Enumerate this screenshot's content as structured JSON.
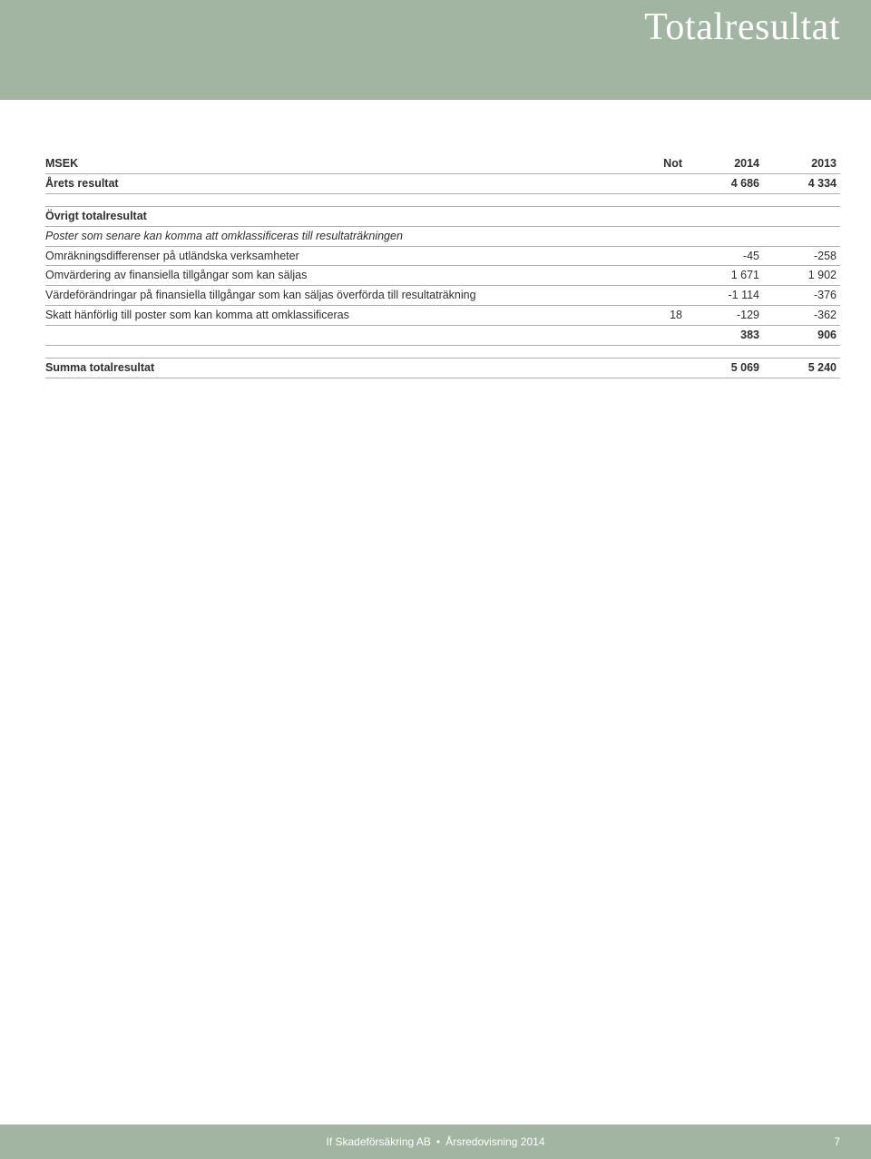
{
  "page": {
    "title": "Totalresultat",
    "header_bg": "#a2b5a2",
    "header_text_color": "#ffffff"
  },
  "table": {
    "columns": {
      "label": "MSEK",
      "not": "Not",
      "y2014": "2014",
      "y2013": "2013"
    },
    "rows": {
      "arets_resultat": {
        "label": "Årets resultat",
        "not": "",
        "y2014": "4 686",
        "y2013": "4 334"
      },
      "ovrigt_header": {
        "label": "Övrigt totalresultat"
      },
      "poster_italic": {
        "label": "Poster som senare kan komma att omklassificeras till resultaträkningen"
      },
      "omrakning": {
        "label": "Omräkningsdifferenser på utländska verksamheter",
        "not": "",
        "y2014": "-45",
        "y2013": "-258"
      },
      "omvardering": {
        "label": "Omvärdering av finansiella tillgångar som kan säljas",
        "not": "",
        "y2014": "1 671",
        "y2013": "1 902"
      },
      "vardeforandr": {
        "label": "Värdeförändringar på finansiella tillgångar som kan säljas överförda till resultaträkning",
        "not": "",
        "y2014": "-1 114",
        "y2013": "-376"
      },
      "skatt": {
        "label": "Skatt hänförlig till poster som kan komma att omklassificeras",
        "not": "18",
        "y2014": "-129",
        "y2013": "-362"
      },
      "subtotal": {
        "label": "",
        "not": "",
        "y2014": "383",
        "y2013": "906"
      },
      "summa": {
        "label": "Summa totalresultat",
        "not": "",
        "y2014": "5 069",
        "y2013": "5 240"
      }
    },
    "border_color": "#b0b0b0"
  },
  "footer": {
    "company": "If Skadeförsäkring AB",
    "doc": "Årsredovisning 2014",
    "page_number": "7",
    "bg": "#a2b5a2"
  }
}
